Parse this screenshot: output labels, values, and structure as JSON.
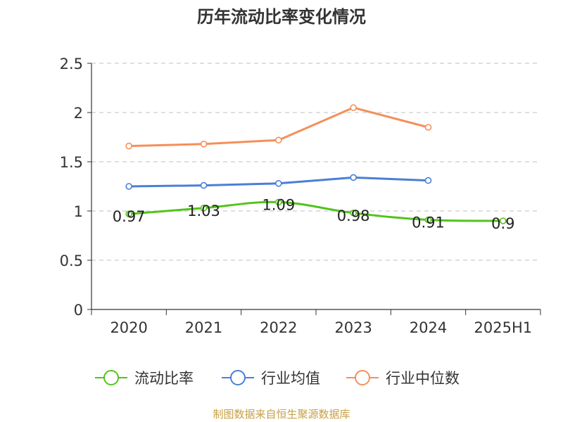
{
  "chart_data": {
    "type": "line",
    "title": "历年流动比率变化情况",
    "categories": [
      "2020",
      "2021",
      "2022",
      "2023",
      "2024",
      "2025H1"
    ],
    "ylim": [
      0,
      2.5
    ],
    "yticks": [
      "0",
      "0.5",
      "1",
      "1.5",
      "2",
      "2.5"
    ],
    "grid": true,
    "legend_position": "bottom",
    "series": [
      {
        "name": "流动比率",
        "color": "#52c41a",
        "values": [
          0.97,
          1.03,
          1.09,
          0.98,
          0.91,
          0.9
        ],
        "labels": [
          "0.97",
          "1.03",
          "1.09",
          "0.98",
          "0.91",
          "0.9"
        ]
      },
      {
        "name": "行业均值",
        "color": "#4a7fd6",
        "values": [
          1.25,
          1.26,
          1.28,
          1.34,
          1.31,
          null
        ]
      },
      {
        "name": "行业中位数",
        "color": "#f58f5a",
        "values": [
          1.66,
          1.68,
          1.72,
          2.05,
          1.85,
          null
        ]
      }
    ]
  },
  "footer": {
    "source": "制图数据来自恒生聚源数据库"
  }
}
